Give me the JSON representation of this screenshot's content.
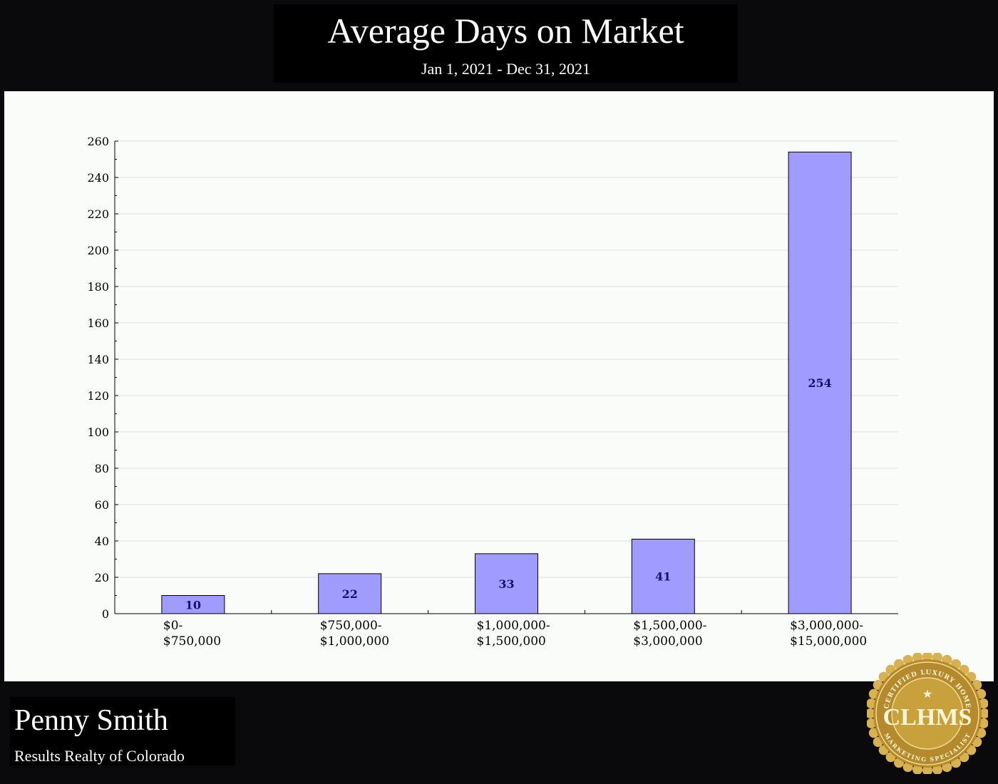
{
  "header": {
    "title": "Average Days on Market",
    "subtitle": "Jan 1, 2021 - Dec 31, 2021"
  },
  "agent": {
    "name": "Penny Smith",
    "company": "Results Realty of Colorado"
  },
  "logo": {
    "text": "CLHMS",
    "ring_top": "CERTIFIED LUXURY HOME",
    "ring_bottom": "MARKETING SPECIALIST"
  },
  "colors": {
    "bar_fill": "#9f9bff",
    "bar_stroke": "#000000",
    "data_label": "#16116a",
    "gold": "#c9a13c",
    "page_background": "#0a090b",
    "plot_background": "#f9fcf9"
  },
  "chart_data": {
    "type": "bar",
    "categories": [
      [
        "$0-",
        "$750,000"
      ],
      [
        "$750,000-",
        "$1,000,000"
      ],
      [
        "$1,000,000-",
        "$1,500,000"
      ],
      [
        "$1,500,000-",
        "$3,000,000"
      ],
      [
        "$3,000,000-",
        "$15,000,000"
      ]
    ],
    "values": [
      10,
      22,
      33,
      41,
      254
    ],
    "data_labels": [
      "10",
      "22",
      "33",
      "41",
      "254"
    ],
    "ylim": [
      0,
      260
    ],
    "yticks": [
      0,
      20,
      40,
      60,
      80,
      100,
      120,
      140,
      160,
      180,
      200,
      220,
      240,
      260
    ],
    "grid": true,
    "legend": false
  }
}
